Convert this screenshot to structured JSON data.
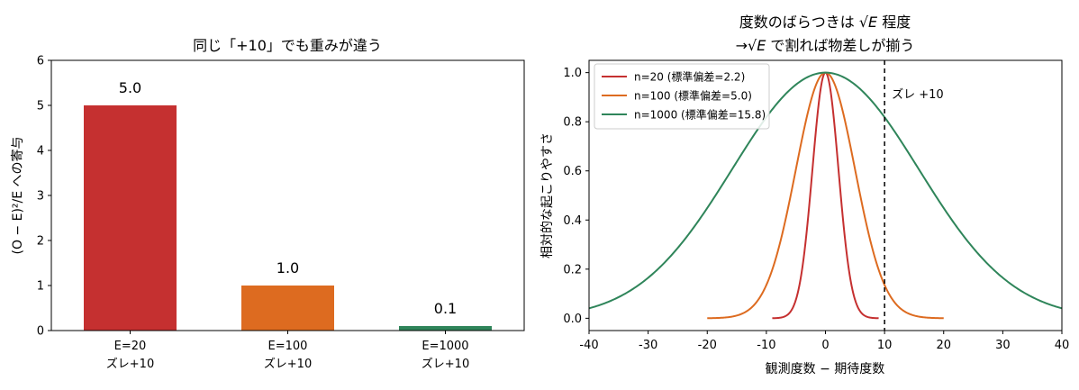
{
  "chart_data": [
    {
      "type": "bar",
      "title": "同じ「+10」でも重みが違う",
      "ylabel": "(O − E)²/E への寄与",
      "xlabel": "",
      "ylim": [
        0,
        6
      ],
      "yticks": [
        0,
        1,
        2,
        3,
        4,
        5,
        6
      ],
      "categories": [
        {
          "line1": "E=20",
          "line2": "ズレ+10"
        },
        {
          "line1": "E=100",
          "line2": "ズレ+10"
        },
        {
          "line1": "E=1000",
          "line2": "ズレ+10"
        }
      ],
      "values": [
        5.0,
        1.0,
        0.1
      ],
      "value_labels": [
        "5.0",
        "1.0",
        "0.1"
      ],
      "colors": [
        "#c53030",
        "#dd6b20",
        "#2f855a"
      ],
      "grid": false
    },
    {
      "type": "line",
      "title_line1_pre": "度数のばらつきは ",
      "title_line1_sqrt": "√E",
      "title_line1_post": " 程度",
      "title_line2_pre": "→",
      "title_line2_sqrt": "√E",
      "title_line2_post": " で割れば物差しが揃う",
      "xlabel": "観測度数 − 期待度数",
      "ylabel": "相対的な起こりやすさ",
      "xlim": [
        -40,
        40
      ],
      "ylim": [
        -0.05,
        1.05
      ],
      "xticks": [
        -40,
        -30,
        -20,
        -10,
        0,
        10,
        20,
        30,
        40
      ],
      "yticks": [
        0.0,
        0.2,
        0.4,
        0.6,
        0.8,
        1.0
      ],
      "legend_position": "top-left",
      "series": [
        {
          "name": "n=20 (標準偏差=2.2)",
          "sd": 2.2,
          "x_range": [
            -9,
            9
          ],
          "color": "#c53030"
        },
        {
          "name": "n=100 (標準偏差=5.0)",
          "sd": 5.0,
          "x_range": [
            -20,
            20
          ],
          "color": "#dd6b20"
        },
        {
          "name": "n=1000 (標準偏差=15.8)",
          "sd": 15.8,
          "x_range": [
            -40,
            40
          ],
          "color": "#2f855a"
        }
      ],
      "vline": {
        "x": 10,
        "label": "ズレ +10",
        "style": "dashed"
      },
      "grid": false
    }
  ]
}
